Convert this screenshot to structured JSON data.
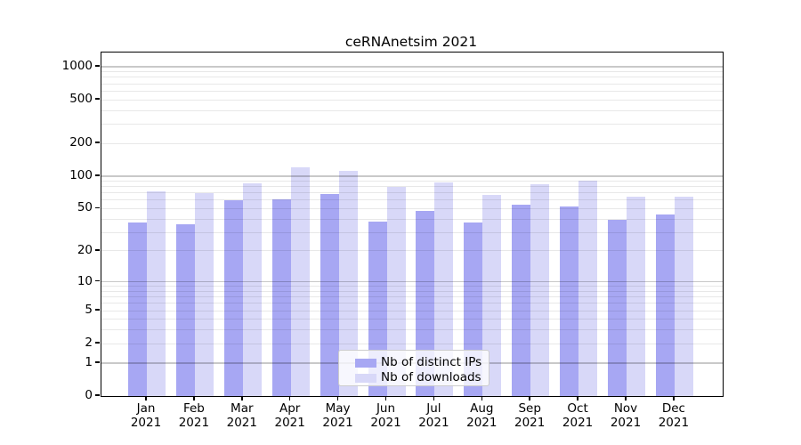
{
  "title": "ceRNAnetsim 2021",
  "chart_data": {
    "type": "bar",
    "title": "ceRNAnetsim 2021",
    "categories": [
      "Jan",
      "Feb",
      "Mar",
      "Apr",
      "May",
      "Jun",
      "Jul",
      "Aug",
      "Sep",
      "Oct",
      "Nov",
      "Dec"
    ],
    "category_year": "2021",
    "series": [
      {
        "name": "Nb of distinct IPs",
        "color": "#a7a7f3",
        "values": [
          37,
          36,
          60,
          61,
          68,
          38,
          48,
          37,
          54,
          52,
          39,
          44
        ]
      },
      {
        "name": "Nb of downloads",
        "color": "#d8d8f8",
        "values": [
          72,
          70,
          85,
          120,
          112,
          79,
          88,
          67,
          84,
          90,
          64,
          65
        ]
      }
    ],
    "yscale": "log10(value+1)",
    "y_ticks": [
      0,
      1,
      2,
      5,
      10,
      20,
      50,
      100,
      200,
      500,
      1000
    ],
    "y_major_gridlines": [
      1,
      10,
      100,
      1000
    ],
    "ylim": [
      0,
      1350
    ],
    "grid": true,
    "legend_position": "lower center",
    "colors": {
      "grid_major": "#cccccc",
      "grid_minor": "#ebebeb",
      "axis": "#000000"
    }
  }
}
